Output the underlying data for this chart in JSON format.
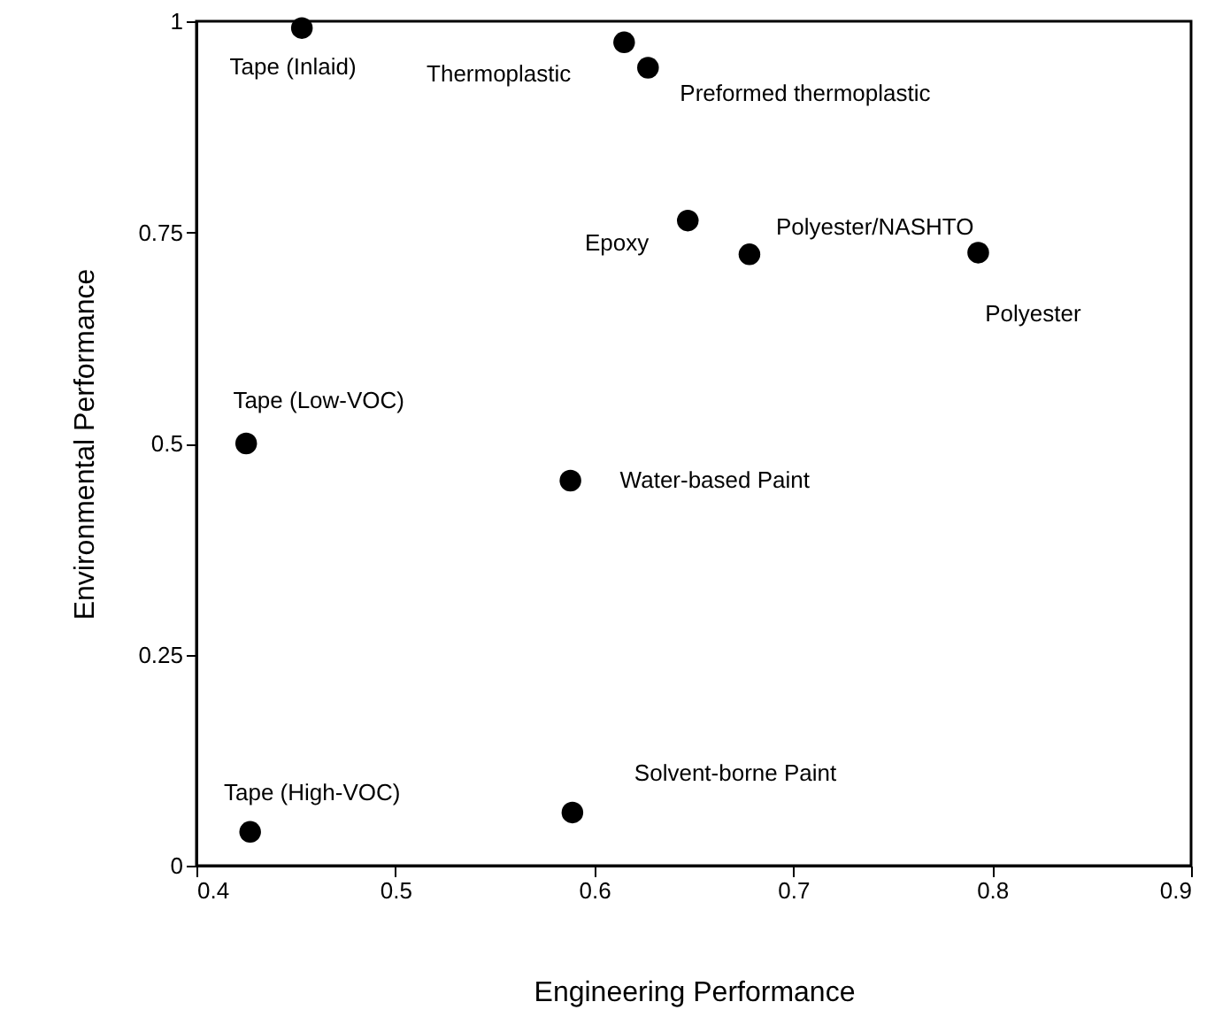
{
  "chart_data": {
    "type": "scatter",
    "xlabel": "Engineering Performance",
    "ylabel": "Environmental Performance",
    "xlim": [
      0.4,
      0.9
    ],
    "xticks": [
      0.4,
      0.5,
      0.6,
      0.7,
      0.8,
      0.9
    ],
    "ylim": [
      0,
      1
    ],
    "yticks": [
      0,
      0.25,
      0.5,
      0.75,
      1
    ],
    "grid": false,
    "marker": "circle",
    "series": [
      {
        "color": "#000000",
        "x": [
          0.453,
          0.615,
          0.627,
          0.647,
          0.678,
          0.793,
          0.425,
          0.588,
          0.427,
          0.589
        ],
        "values": [
          0.992,
          0.975,
          0.945,
          0.764,
          0.724,
          0.726,
          0.5,
          0.456,
          0.04,
          0.063
        ]
      }
    ],
    "annotations": [
      {
        "text": "Tape (Inlaid)",
        "x": 0.453,
        "y": 0.992
      },
      {
        "text": "Thermoplastic",
        "x": 0.615,
        "y": 0.975
      },
      {
        "text": "Preformed thermoplastic",
        "x": 0.627,
        "y": 0.945
      },
      {
        "text": "Epoxy",
        "x": 0.647,
        "y": 0.764
      },
      {
        "text": "Polyester/NASHTO",
        "x": 0.678,
        "y": 0.724
      },
      {
        "text": "Polyester",
        "x": 0.793,
        "y": 0.726
      },
      {
        "text": "Tape (Low-VOC)",
        "x": 0.425,
        "y": 0.5
      },
      {
        "text": "Water-based Paint",
        "x": 0.588,
        "y": 0.456
      },
      {
        "text": "Tape (High-VOC)",
        "x": 0.427,
        "y": 0.04
      },
      {
        "text": "Solvent-borne Paint",
        "x": 0.589,
        "y": 0.063
      }
    ]
  }
}
